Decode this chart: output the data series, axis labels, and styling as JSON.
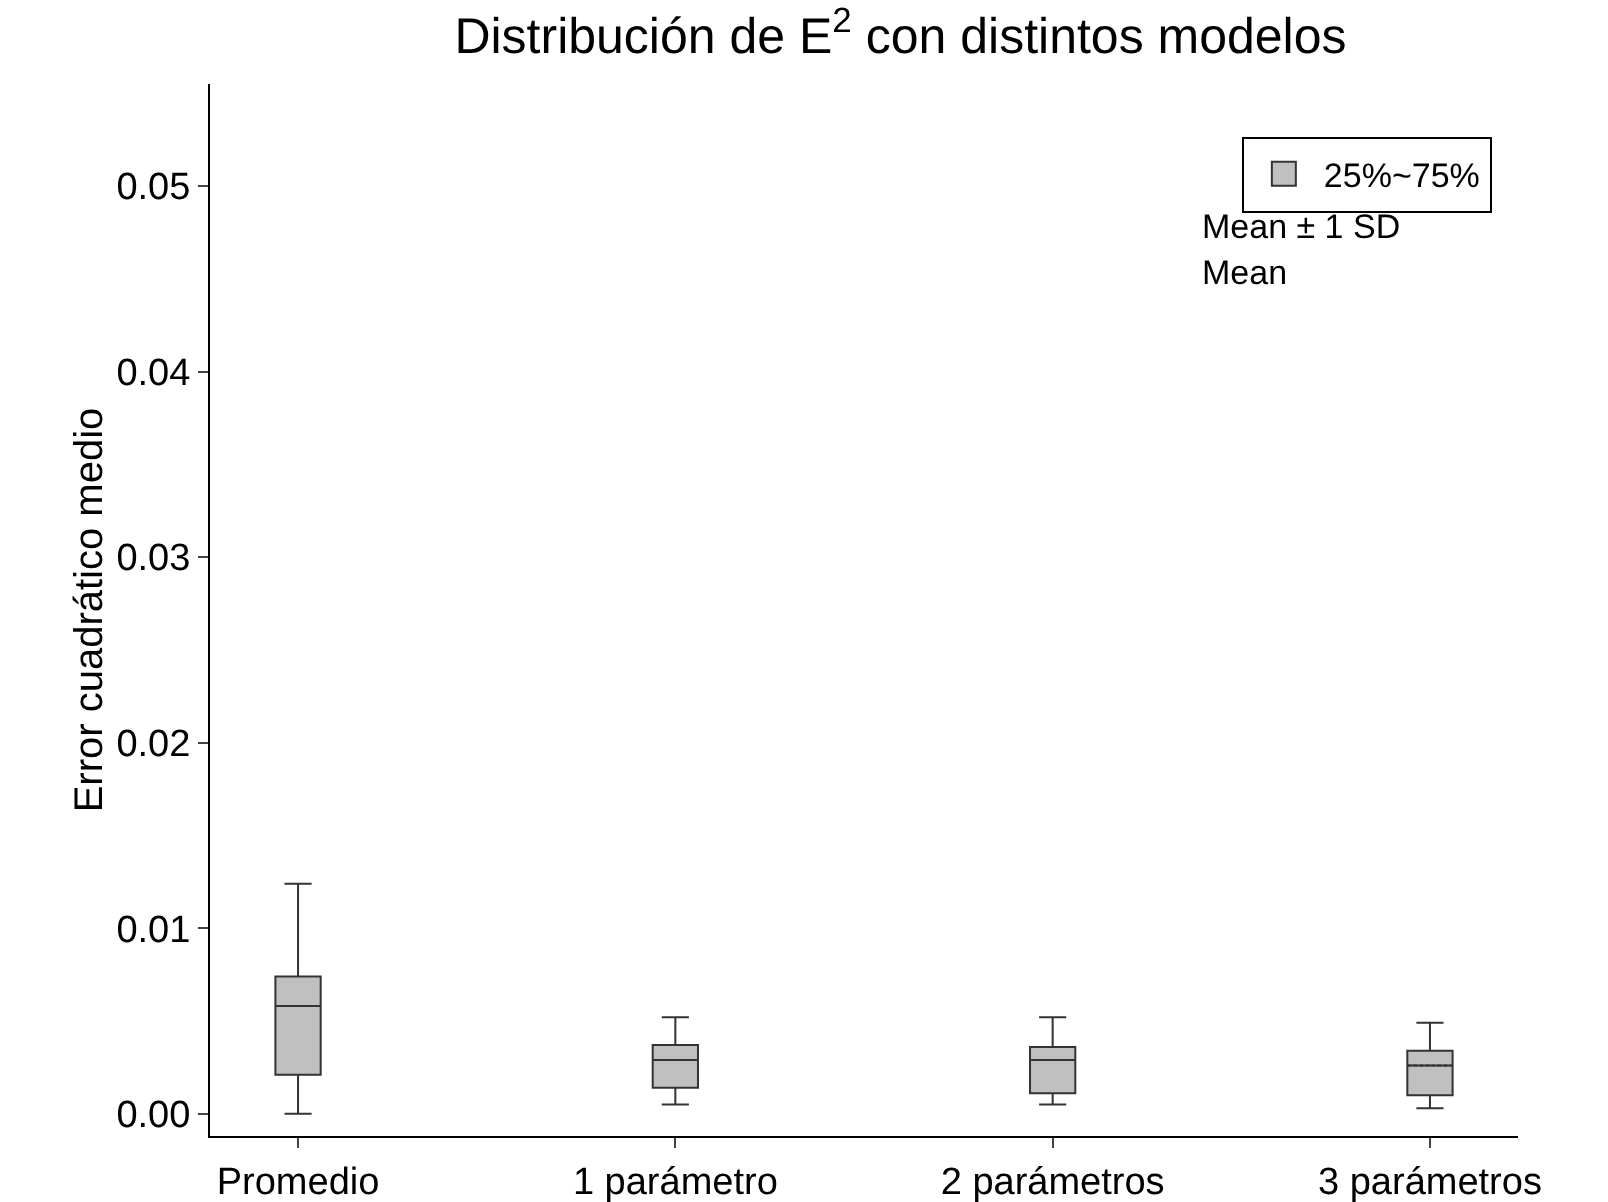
{
  "chart_data": {
    "type": "box",
    "title": "Distribución de E$^{2}$ con distintos modelos",
    "ylabel": "Error cuadrático medio",
    "categories": [
      "Promedio",
      "1 parámetro",
      "2 parámetros",
      "3 parámetros"
    ],
    "ylim": [
      -0.0012,
      0.0555
    ],
    "yticks": [
      {
        "value": 0,
        "label": "0.00"
      },
      {
        "value": 0.01,
        "label": "0.01"
      },
      {
        "value": 0.02,
        "label": "0.02"
      },
      {
        "value": 0.03,
        "label": "0.03"
      },
      {
        "value": 0.04,
        "label": "0.04"
      },
      {
        "value": 0.05,
        "label": "0.05"
      }
    ],
    "series": [
      {
        "name": "25%~75%",
        "color": "#c0c0c0",
        "boxes": [
          {
            "low": 0,
            "q1": 0.0021,
            "median": 0.0058,
            "q3": 0.0074,
            "high": 0.0124,
            "mean": 0.0058
          },
          {
            "low": 0.0005,
            "q1": 0.0014,
            "median": 0.0029,
            "q3": 0.0037,
            "high": 0.0052,
            "mean": 0.0029
          },
          {
            "low": 0.0005,
            "q1": 0.0011,
            "median": 0.0029,
            "q3": 0.0036,
            "high": 0.0052,
            "mean": 0.0029
          },
          {
            "low": 0.0003,
            "q1": 0.001,
            "median": 0.0026,
            "q3": 0.0034,
            "high": 0.0049,
            "mean": 0.0026
          }
        ]
      }
    ],
    "annotations": [
      "Mean ± 1 SD",
      "Mean"
    ],
    "legend": "top right",
    "grid": false
  }
}
